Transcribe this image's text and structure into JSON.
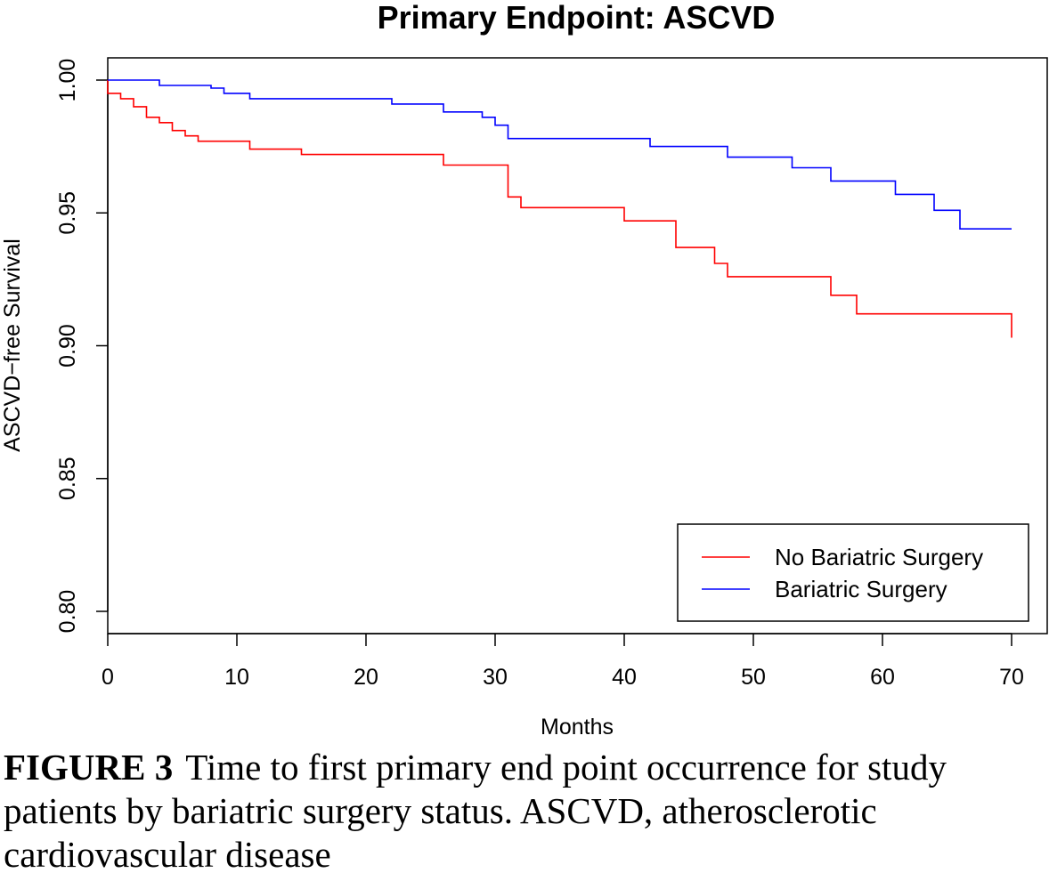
{
  "caption": {
    "label": "FIGURE 3",
    "text": "Time to first primary end point occurrence for study patients by bariatric surgery status. ASCVD, atherosclerotic cardiovascular disease"
  },
  "chart_data": {
    "type": "line",
    "style": "step",
    "title": "Primary Endpoint: ASCVD",
    "xlabel": "Months",
    "ylabel": "ASCVD−free Survival",
    "xlim": [
      0,
      70
    ],
    "ylim": [
      0.8,
      1.0
    ],
    "xticks": [
      0,
      10,
      20,
      30,
      40,
      50,
      60,
      70
    ],
    "yticks": [
      "0.80",
      "0.85",
      "0.90",
      "0.95",
      "1.00"
    ],
    "legend_position": "bottom-right",
    "series": [
      {
        "name": "No Bariatric Surgery",
        "color": "#ff0000",
        "x": [
          0,
          0,
          1,
          2,
          3,
          4,
          5,
          6,
          7,
          11,
          15,
          26,
          31,
          32,
          40,
          44,
          47,
          48,
          56,
          58,
          70,
          70
        ],
        "y": [
          1.0,
          0.995,
          0.993,
          0.99,
          0.986,
          0.984,
          0.981,
          0.979,
          0.977,
          0.974,
          0.972,
          0.968,
          0.956,
          0.952,
          0.947,
          0.937,
          0.931,
          0.926,
          0.919,
          0.912,
          0.912,
          0.903
        ]
      },
      {
        "name": "Bariatric Surgery",
        "color": "#0000ff",
        "x": [
          0,
          4,
          8,
          9,
          11,
          22,
          26,
          29,
          30,
          31,
          42,
          48,
          53,
          56,
          61,
          64,
          66,
          70
        ],
        "y": [
          1.0,
          0.998,
          0.997,
          0.995,
          0.993,
          0.991,
          0.988,
          0.986,
          0.983,
          0.978,
          0.975,
          0.971,
          0.967,
          0.962,
          0.957,
          0.951,
          0.944,
          0.944
        ]
      }
    ]
  }
}
